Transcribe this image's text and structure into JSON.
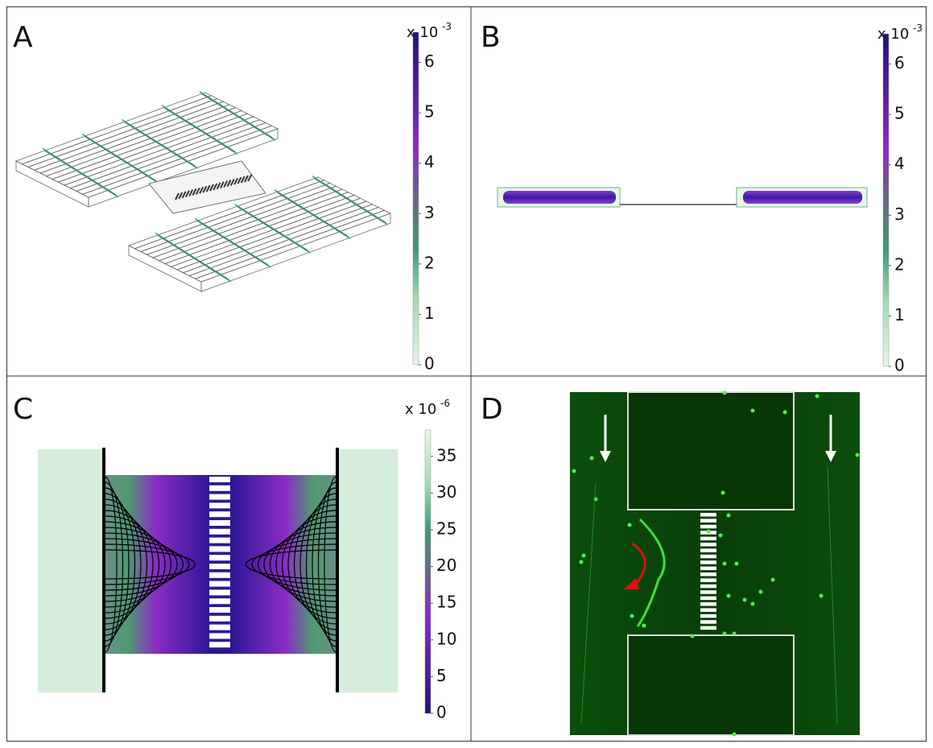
{
  "panels": [
    {
      "label": "A",
      "colorbar": {
        "multiplier": "x 10",
        "exponent": "-3",
        "lim": [
          0,
          6.6
        ],
        "ticks": [
          0,
          1,
          2,
          3,
          4,
          5,
          6
        ]
      }
    },
    {
      "label": "B",
      "colorbar": {
        "multiplier": "x 10",
        "exponent": "-3",
        "lim": [
          0,
          6.6
        ],
        "ticks": [
          0,
          1,
          2,
          3,
          4,
          5,
          6
        ]
      }
    },
    {
      "label": "C",
      "colorbar": {
        "multiplier": "x 10",
        "exponent": "-6",
        "lim": [
          0,
          38.6
        ],
        "ticks": [
          0,
          5,
          10,
          15,
          20,
          25,
          30,
          35
        ]
      }
    },
    {
      "label": "D"
    }
  ]
}
